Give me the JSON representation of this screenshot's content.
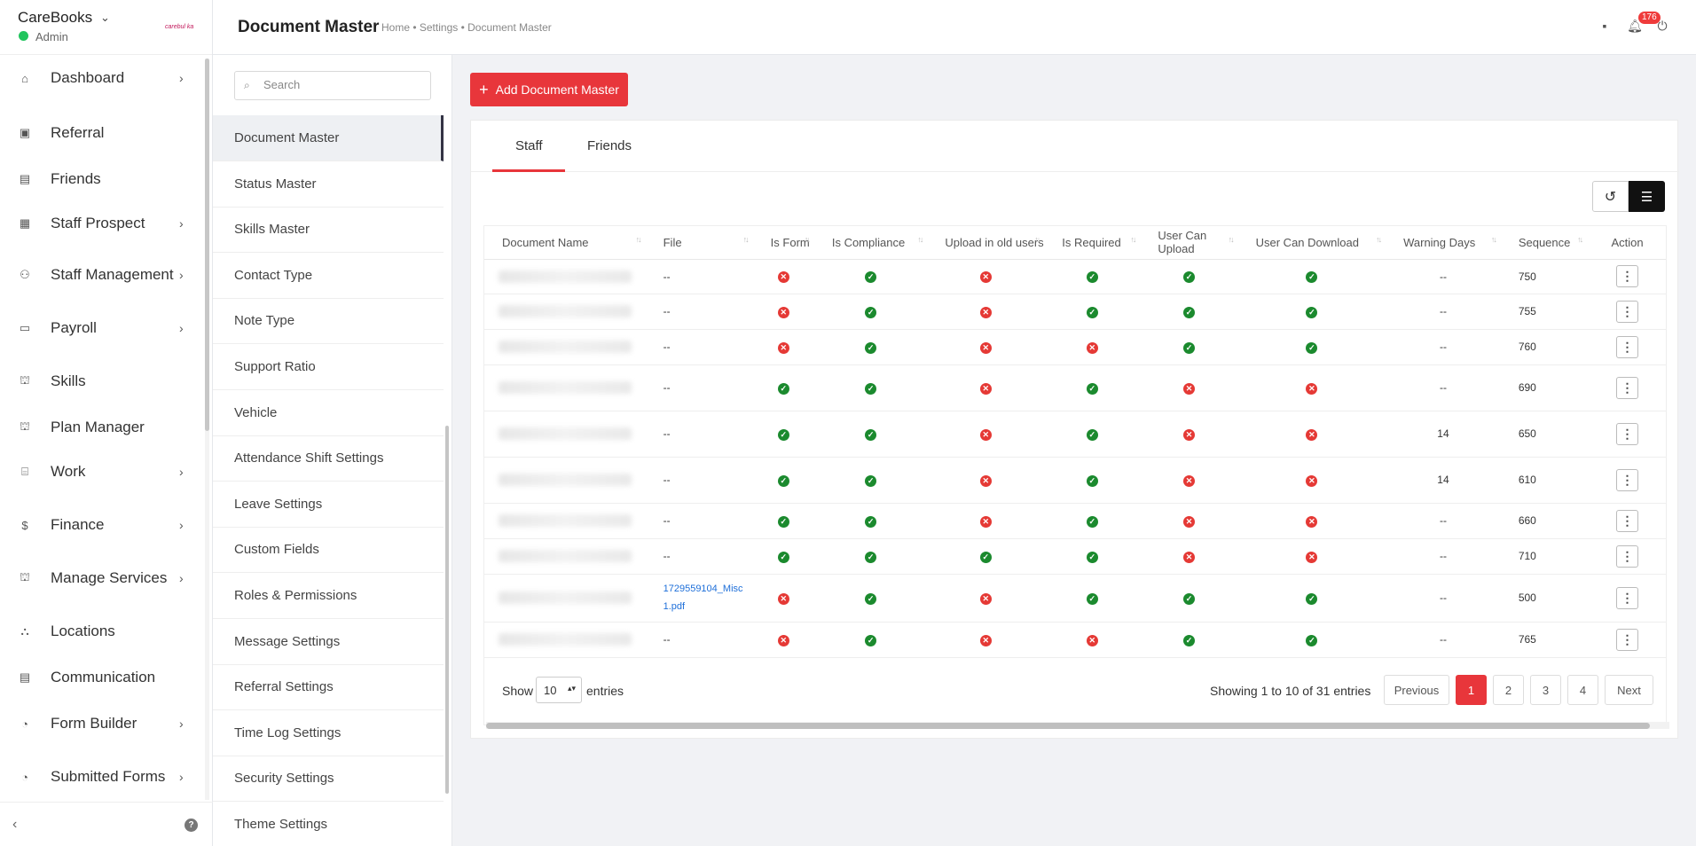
{
  "brand": {
    "name": "CareBooks",
    "role": "Admin",
    "logo_text": "carebul ka"
  },
  "nav": [
    {
      "label": "Dashboard",
      "icon": "home-icon",
      "glyph": "⌂",
      "arrow": true
    },
    {
      "label": "Referral",
      "icon": "referral-icon",
      "glyph": "▣",
      "arrow": false
    },
    {
      "label": "Friends",
      "icon": "friends-icon",
      "glyph": "▤",
      "arrow": false
    },
    {
      "label": "Staff Prospect",
      "icon": "staff-prospect-icon",
      "glyph": "▦",
      "arrow": true
    },
    {
      "label": "Staff Management",
      "icon": "staff-management-icon",
      "glyph": "⚇",
      "arrow": true
    },
    {
      "label": "Payroll",
      "icon": "payroll-icon",
      "glyph": "▭",
      "arrow": true
    },
    {
      "label": "Skills",
      "icon": "skills-icon",
      "glyph": "⛫",
      "arrow": false
    },
    {
      "label": "Plan Manager",
      "icon": "plan-manager-icon",
      "glyph": "⛫",
      "arrow": false
    },
    {
      "label": "Work",
      "icon": "work-icon",
      "glyph": "⌸",
      "arrow": true
    },
    {
      "label": "Finance",
      "icon": "finance-icon",
      "glyph": "$",
      "arrow": true
    },
    {
      "label": "Manage Services",
      "icon": "manage-services-icon",
      "glyph": "⛫",
      "arrow": true
    },
    {
      "label": "Locations",
      "icon": "locations-icon",
      "glyph": "⛬",
      "arrow": false
    },
    {
      "label": "Communication",
      "icon": "communication-icon",
      "glyph": "▤",
      "arrow": false
    },
    {
      "label": "Form Builder",
      "icon": "form-builder-icon",
      "glyph": "◔",
      "arrow": true
    },
    {
      "label": "Submitted Forms",
      "icon": "submitted-forms-icon",
      "glyph": "◔",
      "arrow": true
    }
  ],
  "header": {
    "title": "Document Master",
    "breadcrumb": "Home • Settings • Document Master",
    "notification_count": "176"
  },
  "settings": {
    "search_placeholder": "Search",
    "items": [
      "Document Master",
      "Status Master",
      "Skills Master",
      "Contact Type",
      "Note Type",
      "Support Ratio",
      "Vehicle",
      "Attendance Shift Settings",
      "Leave Settings",
      "Custom Fields",
      "Roles & Permissions",
      "Message Settings",
      "Referral Settings",
      "Time Log Settings",
      "Security Settings",
      "Theme Settings"
    ],
    "active_index": 0
  },
  "main": {
    "add_button": "Add Document Master",
    "tabs": [
      "Staff",
      "Friends"
    ],
    "active_tab": 0
  },
  "table": {
    "columns": [
      "Document Name",
      "File",
      "Is Form",
      "Is Compliance",
      "Upload in old users",
      "Is Required",
      "User Can Upload",
      "User Can Download",
      "Warning Days",
      "Sequence",
      "Action"
    ],
    "rows": [
      {
        "file": "--",
        "is_form": false,
        "is_compliance": true,
        "upload_old": false,
        "is_required": true,
        "can_upload": true,
        "can_download": true,
        "warning": "--",
        "sequence": "750"
      },
      {
        "file": "--",
        "is_form": false,
        "is_compliance": true,
        "upload_old": false,
        "is_required": true,
        "can_upload": true,
        "can_download": true,
        "warning": "--",
        "sequence": "755"
      },
      {
        "file": "--",
        "is_form": false,
        "is_compliance": true,
        "upload_old": false,
        "is_required": false,
        "can_upload": true,
        "can_download": true,
        "warning": "--",
        "sequence": "760"
      },
      {
        "file": "--",
        "is_form": true,
        "is_compliance": true,
        "upload_old": false,
        "is_required": true,
        "can_upload": false,
        "can_download": false,
        "warning": "--",
        "sequence": "690"
      },
      {
        "file": "--",
        "is_form": true,
        "is_compliance": true,
        "upload_old": false,
        "is_required": true,
        "can_upload": false,
        "can_download": false,
        "warning": "14",
        "sequence": "650"
      },
      {
        "file": "--",
        "is_form": true,
        "is_compliance": true,
        "upload_old": false,
        "is_required": true,
        "can_upload": false,
        "can_download": false,
        "warning": "14",
        "sequence": "610"
      },
      {
        "file": "--",
        "is_form": true,
        "is_compliance": true,
        "upload_old": false,
        "is_required": true,
        "can_upload": false,
        "can_download": false,
        "warning": "--",
        "sequence": "660"
      },
      {
        "file": "--",
        "is_form": true,
        "is_compliance": true,
        "upload_old": true,
        "is_required": true,
        "can_upload": false,
        "can_download": false,
        "warning": "--",
        "sequence": "710"
      },
      {
        "file": "1729559104_Misc 1.pdf",
        "file_line1": "1729559104_Misc",
        "file_line2": "1.pdf",
        "is_form": false,
        "is_compliance": true,
        "upload_old": false,
        "is_required": true,
        "can_upload": true,
        "can_download": true,
        "warning": "--",
        "sequence": "500"
      },
      {
        "file": "--",
        "is_form": false,
        "is_compliance": true,
        "upload_old": false,
        "is_required": false,
        "can_upload": true,
        "can_download": true,
        "warning": "--",
        "sequence": "765"
      }
    ]
  },
  "footer": {
    "show_label": "Show",
    "page_size": "10",
    "entries_label": "entries",
    "showing_text": "Showing 1 to 10 of 31 entries",
    "previous": "Previous",
    "next": "Next",
    "pages": [
      "1",
      "2",
      "3",
      "4"
    ],
    "current_page": "1"
  },
  "colors": {
    "accent": "#e8363b",
    "ok": "#1b8a2e",
    "no": "#e53935",
    "link": "#1e6fd9"
  }
}
